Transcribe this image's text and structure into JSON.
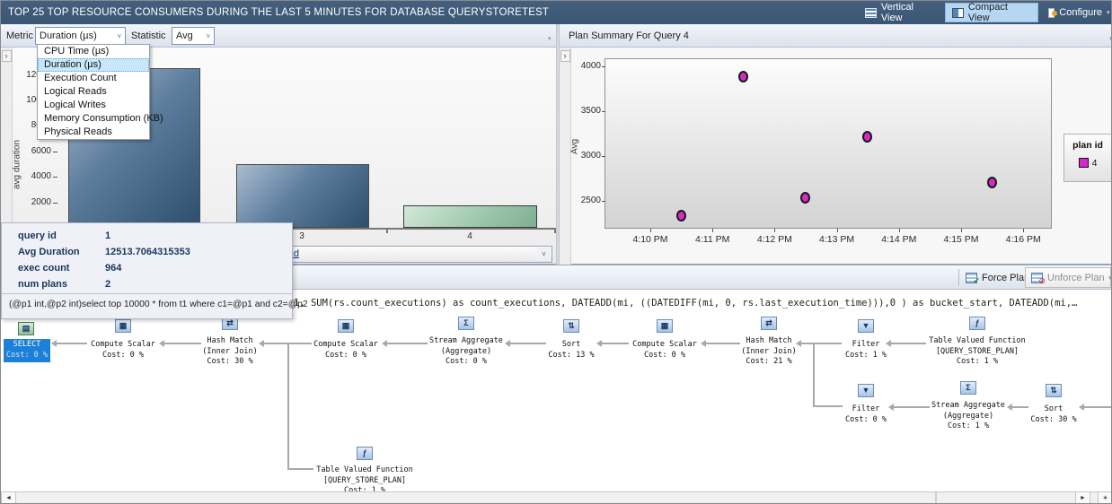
{
  "title_bar": {
    "title": "TOP 25 TOP RESOURCE CONSUMERS DURING THE LAST 5 MINUTES FOR DATABASE QUERYSTORETEST",
    "buttons": [
      {
        "label": "Vertical View",
        "icon": "vertical-view-icon",
        "active": false
      },
      {
        "label": "Compact View",
        "icon": "compact-view-icon",
        "active": true
      },
      {
        "label": "Configure",
        "icon": "configure-icon",
        "active": false
      }
    ]
  },
  "left_panel": {
    "toolbar": {
      "metric_label": "Metric",
      "metric_value": "Duration (µs)",
      "statistic_label": "Statistic",
      "statistic_value": "Avg",
      "icons": [
        "refresh-icon",
        "crosshair-icon",
        "track-query-icon",
        "grid-view-icon",
        "details-grid-icon",
        "chart-view-icon"
      ],
      "active_icon": "chart-view-icon"
    },
    "metric_menu": {
      "items": [
        "CPU Time (µs)",
        "Duration (µs)",
        "Execution Count",
        "Logical Reads",
        "Logical Writes",
        "Memory Consumption (KB)",
        "Physical Reads"
      ],
      "selected_index": 1
    },
    "chart_data": {
      "type": "bar",
      "ylabel": "avg duration",
      "xlabel": "query id",
      "categories": [
        "1",
        "3",
        "4"
      ],
      "values": [
        12513.71,
        5000,
        1760
      ],
      "y_ticks": [
        2000,
        4000,
        6000,
        8000,
        10000,
        12000
      ],
      "ylim": [
        0,
        12800
      ],
      "bar_colors": [
        "steel-blue",
        "steel-blue",
        "green-selected"
      ],
      "selected_category": "4"
    },
    "query_combobox_value": "query id",
    "tooltip": {
      "rows": [
        {
          "label": "query id",
          "value": "1"
        },
        {
          "label": "Avg Duration",
          "value": "12513.7064315353"
        },
        {
          "label": "exec count",
          "value": "964"
        },
        {
          "label": "num plans",
          "value": "2"
        }
      ],
      "query_text": "(@p1 int,@p2 int)select top 10000 * from t1 where  c1=@p1 and c2=@p2"
    }
  },
  "right_panel": {
    "title": "Plan Summary For Query 4",
    "toolbar_icons": [
      "refresh-icon",
      "force-plan-icon",
      "unforce-plan-icon",
      "compare-plans-icon",
      "details-grid-icon",
      "chart-view-icon"
    ],
    "active_icon": "chart-view-icon",
    "checked_icon": "unforce-plan-icon",
    "chart_data": {
      "type": "scatter",
      "ylabel": "Avg",
      "legend_title": "plan id",
      "y_ticks": [
        2500,
        3000,
        3500,
        4000
      ],
      "x_ticks": [
        "4:10 PM",
        "4:11 PM",
        "4:12 PM",
        "4:13 PM",
        "4:14 PM",
        "4:15 PM",
        "4:16 PM"
      ],
      "series": [
        {
          "name": "4",
          "color": "#d42bc8",
          "points": [
            {
              "x": "4:10:30 PM",
              "y": 2330
            },
            {
              "x": "4:11:30 PM",
              "y": 3880
            },
            {
              "x": "4:12:30 PM",
              "y": 2530
            },
            {
              "x": "4:13:30 PM",
              "y": 3210
            },
            {
              "x": "4:15:30 PM",
              "y": 2700
            }
          ]
        }
      ]
    }
  },
  "plan_panel": {
    "force_button": "Force Plan",
    "unforce_button": "Unforce Plan",
    "query_text": "1, SUM(rs.count_executions) as count_executions, DATEADD(mi, ((DATEDIFF(mi, 0, rs.last_execution_time))),0 ) as bucket_start, DATEADD(mi,…",
    "nodes": [
      {
        "lines": [
          "SELECT",
          "Cost: 0 %"
        ],
        "icon": "select-result-icon",
        "selected": true
      },
      {
        "lines": [
          "Compute Scalar",
          "Cost: 0 %"
        ],
        "icon": "compute-scalar-icon"
      },
      {
        "lines": [
          "Hash Match",
          "(Inner Join)",
          "Cost: 30 %"
        ],
        "icon": "hash-match-icon"
      },
      {
        "lines": [
          "Compute Scalar",
          "Cost: 0 %"
        ],
        "icon": "compute-scalar-icon"
      },
      {
        "lines": [
          "Stream Aggregate",
          "(Aggregate)",
          "Cost: 0 %"
        ],
        "icon": "stream-aggregate-icon"
      },
      {
        "lines": [
          "Sort",
          "Cost: 13 %"
        ],
        "icon": "sort-icon"
      },
      {
        "lines": [
          "Compute Scalar",
          "Cost: 0 %"
        ],
        "icon": "compute-scalar-icon"
      },
      {
        "lines": [
          "Hash Match",
          "(Inner Join)",
          "Cost: 21 %"
        ],
        "icon": "hash-match-icon"
      },
      {
        "lines": [
          "Filter",
          "Cost: 1 %"
        ],
        "icon": "filter-icon"
      },
      {
        "lines": [
          "Table Valued Function",
          "[QUERY_STORE_PLAN]",
          "Cost: 1 %"
        ],
        "icon": "tvf-icon"
      },
      {
        "lines": [
          "Filter",
          "Cost: 0 %"
        ],
        "icon": "filter-icon"
      },
      {
        "lines": [
          "Stream Aggregate",
          "(Aggregate)",
          "Cost: 1 %"
        ],
        "icon": "stream-aggregate-icon"
      },
      {
        "lines": [
          "Sort",
          "Cost: 30 %"
        ],
        "icon": "sort-icon"
      },
      {
        "lines": [
          "Table Valued Function",
          "[QUERY_STORE_PLAN]",
          "Cost: 1 %"
        ],
        "icon": "tvf-icon"
      }
    ]
  }
}
